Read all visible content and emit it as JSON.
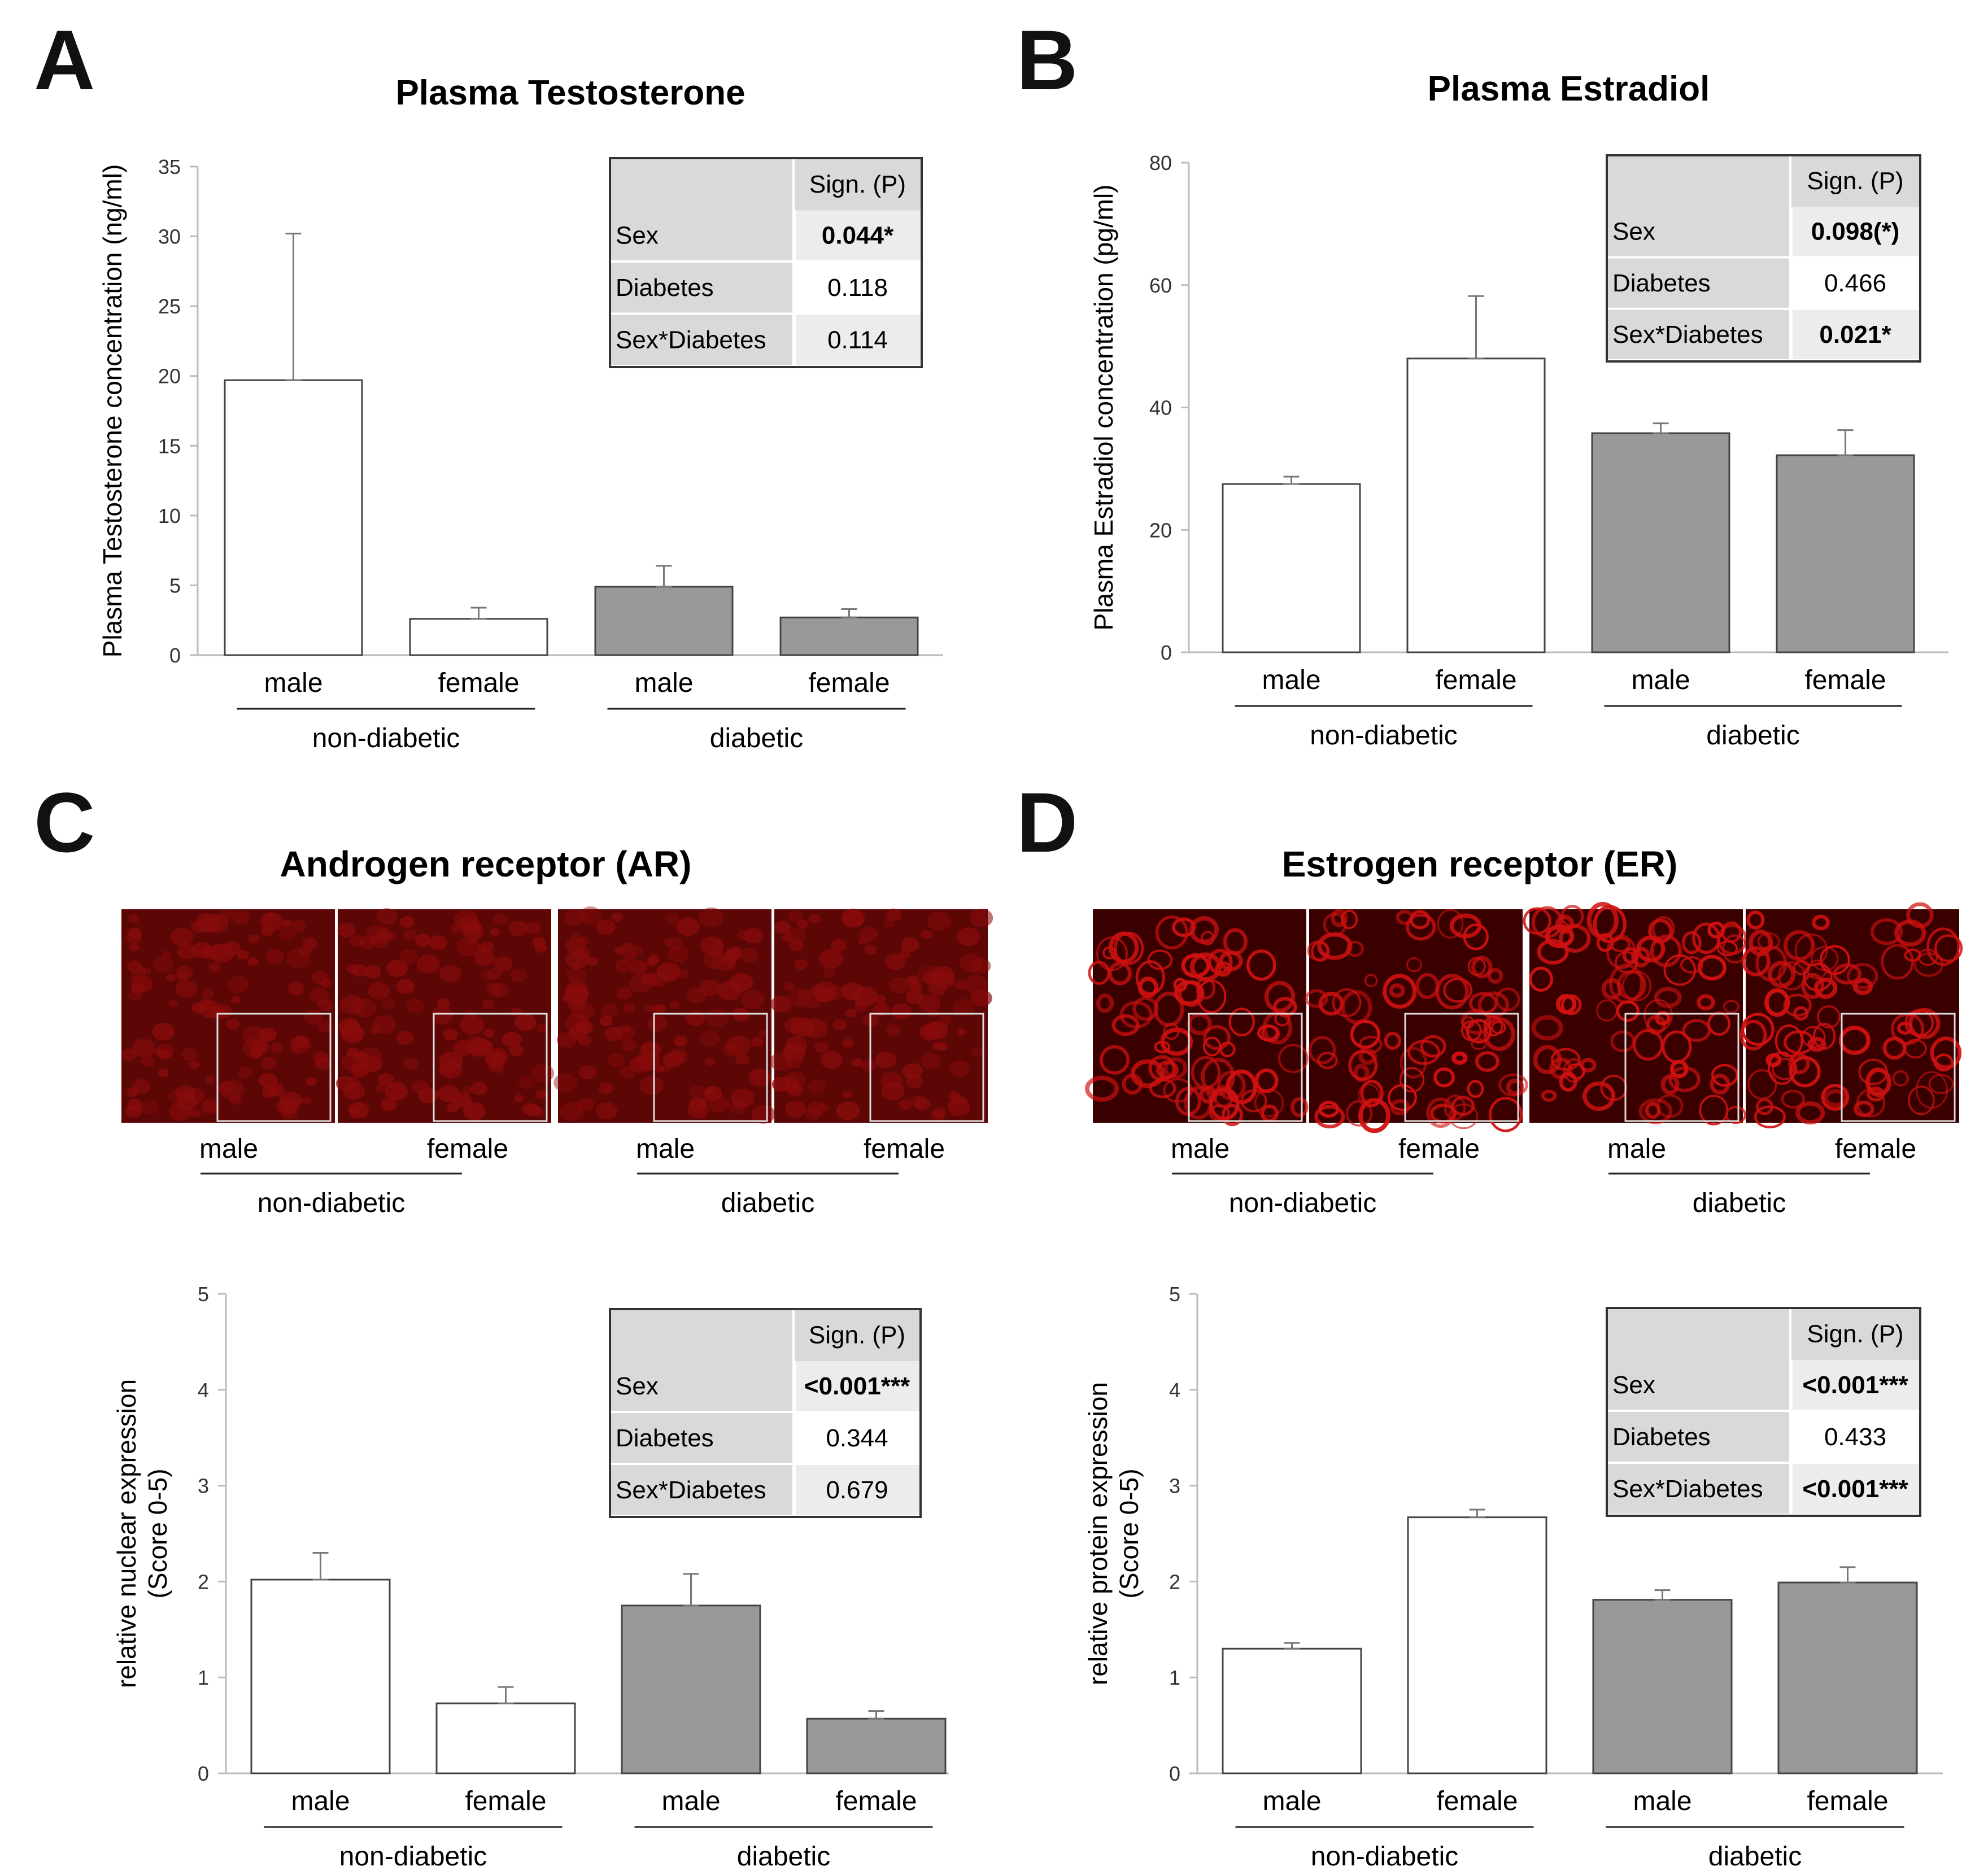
{
  "colors": {
    "nondiabetic_bar": "#ffffff",
    "diabetic_bar": "#999999",
    "bar_stroke": "#444444",
    "stain": "#d01010",
    "table_header": "#d9d9d9",
    "table_row": "#ececec"
  },
  "panels": {
    "A": {
      "letter": "A"
    },
    "B": {
      "letter": "B"
    },
    "C": {
      "letter": "C",
      "title": "Androgen receptor (AR)",
      "image_labels": [
        "male",
        "female",
        "male",
        "female"
      ],
      "image_groups": [
        "non-diabetic",
        "diabetic"
      ]
    },
    "D": {
      "letter": "D",
      "title": "Estrogen receptor (ER)",
      "image_labels": [
        "male",
        "female",
        "male",
        "female"
      ],
      "image_groups": [
        "non-diabetic",
        "diabetic"
      ]
    }
  },
  "chart_data": [
    {
      "id": "A",
      "type": "bar",
      "title": "Plasma Testosterone",
      "ylabel": "Plasma Testosterone concentration (ng/ml)",
      "ylabel2": "",
      "ylim": [
        0,
        35
      ],
      "yticks": [
        0,
        5,
        10,
        15,
        20,
        25,
        30,
        35
      ],
      "categories": [
        "male",
        "female",
        "male",
        "female"
      ],
      "groups": [
        "non-diabetic",
        "diabetic"
      ],
      "values": [
        19.7,
        2.6,
        4.9,
        2.7
      ],
      "errors": [
        10.5,
        0.8,
        1.5,
        0.6
      ],
      "diabetic": [
        false,
        false,
        true,
        true
      ],
      "stats": {
        "header": "Sign. (P)",
        "rows": [
          {
            "label": "Sex",
            "value": "0.044*",
            "bold": true
          },
          {
            "label": "Diabetes",
            "value": "0.118",
            "bold": false
          },
          {
            "label": "Sex*Diabetes",
            "value": "0.114",
            "bold": false
          }
        ]
      }
    },
    {
      "id": "B",
      "type": "bar",
      "title": "Plasma Estradiol",
      "ylabel": "Plasma Estradiol concentration (pg/ml)",
      "ylabel2": "",
      "ylim": [
        0,
        80
      ],
      "yticks": [
        0,
        20,
        40,
        60,
        80
      ],
      "categories": [
        "male",
        "female",
        "male",
        "female"
      ],
      "groups": [
        "non-diabetic",
        "diabetic"
      ],
      "values": [
        27.5,
        48,
        35.8,
        32.2
      ],
      "errors": [
        1.2,
        10.2,
        1.6,
        4.1
      ],
      "diabetic": [
        false,
        false,
        true,
        true
      ],
      "stats": {
        "header": "Sign. (P)",
        "rows": [
          {
            "label": "Sex",
            "value": "0.098(*)",
            "bold": true
          },
          {
            "label": "Diabetes",
            "value": "0.466",
            "bold": false
          },
          {
            "label": "Sex*Diabetes",
            "value": "0.021*",
            "bold": true
          }
        ]
      }
    },
    {
      "id": "C",
      "type": "bar",
      "title": "",
      "ylabel": "relative nuclear expression",
      "ylabel2": "(Score 0-5)",
      "ylim": [
        0,
        5
      ],
      "yticks": [
        0,
        1,
        2,
        3,
        4,
        5
      ],
      "categories": [
        "male",
        "female",
        "male",
        "female"
      ],
      "groups": [
        "non-diabetic",
        "diabetic"
      ],
      "values": [
        2.02,
        0.73,
        1.75,
        0.57
      ],
      "errors": [
        0.28,
        0.17,
        0.33,
        0.08
      ],
      "diabetic": [
        false,
        false,
        true,
        true
      ],
      "stats": {
        "header": "Sign. (P)",
        "rows": [
          {
            "label": "Sex",
            "value": "<0.001***",
            "bold": true
          },
          {
            "label": "Diabetes",
            "value": "0.344",
            "bold": false
          },
          {
            "label": "Sex*Diabetes",
            "value": "0.679",
            "bold": false
          }
        ]
      }
    },
    {
      "id": "D",
      "type": "bar",
      "title": "",
      "ylabel": "relative protein expression",
      "ylabel2": "(Score 0-5)",
      "ylim": [
        0,
        5
      ],
      "yticks": [
        0,
        1,
        2,
        3,
        4,
        5
      ],
      "categories": [
        "male",
        "female",
        "male",
        "female"
      ],
      "groups": [
        "non-diabetic",
        "diabetic"
      ],
      "values": [
        1.3,
        2.67,
        1.81,
        1.99
      ],
      "errors": [
        0.06,
        0.08,
        0.1,
        0.16
      ],
      "diabetic": [
        false,
        false,
        true,
        true
      ],
      "stats": {
        "header": "Sign. (P)",
        "rows": [
          {
            "label": "Sex",
            "value": "<0.001***",
            "bold": true
          },
          {
            "label": "Diabetes",
            "value": "0.433",
            "bold": false
          },
          {
            "label": "Sex*Diabetes",
            "value": "<0.001***",
            "bold": true
          }
        ]
      }
    }
  ]
}
